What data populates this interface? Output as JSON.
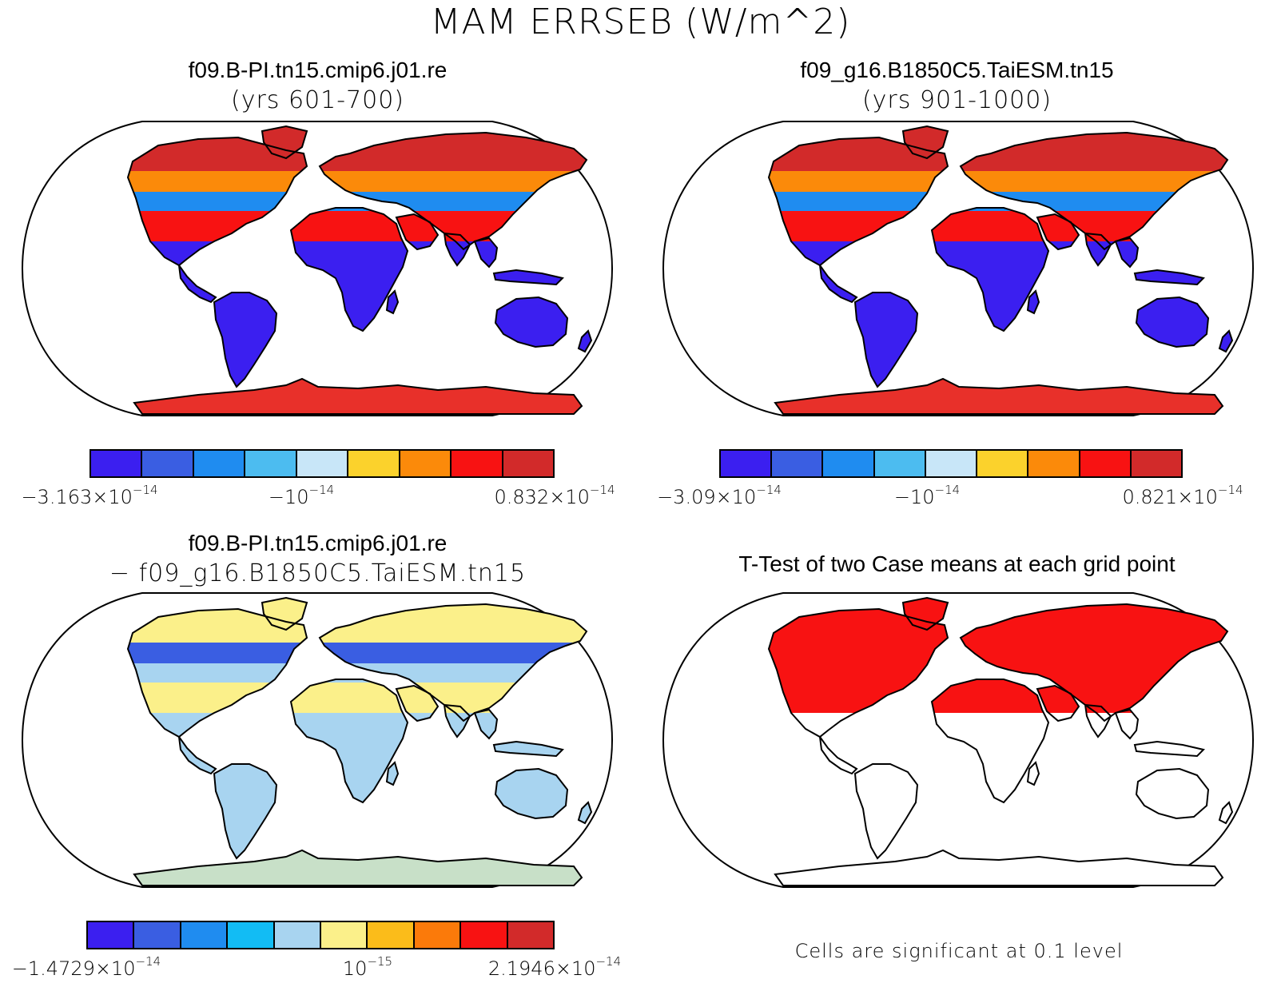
{
  "figure_title": "MAM ERRSEB (W/m^2)",
  "panels": [
    {
      "title": "f09.B-PI.tn15.cmip6.j01.re",
      "subtitle": "(yrs 601-700)",
      "colorbar": {
        "colors": [
          "#3b1ff0",
          "#3a5ee2",
          "#1f8cf0",
          "#4cbcf0",
          "#c8e6f8",
          "#fbd22c",
          "#fb8a0a",
          "#f81212",
          "#d22a2a"
        ],
        "labels": [
          {
            "mantissa": "−3.163×10",
            "exp": "−14"
          },
          {
            "mantissa": "−10",
            "exp": "−14"
          },
          {
            "mantissa": "0.832×10",
            "exp": "−14"
          }
        ]
      }
    },
    {
      "title": "f09_g16.B1850C5.TaiESM.tn15",
      "subtitle": "(yrs 901-1000)",
      "colorbar": {
        "colors": [
          "#3b1ff0",
          "#3a5ee2",
          "#1f8cf0",
          "#4cbcf0",
          "#c8e6f8",
          "#fbd22c",
          "#fb8a0a",
          "#f81212",
          "#d22a2a"
        ],
        "labels": [
          {
            "mantissa": "−3.09×10",
            "exp": "−14"
          },
          {
            "mantissa": "−10",
            "exp": "−14"
          },
          {
            "mantissa": "0.821×10",
            "exp": "−14"
          }
        ]
      }
    },
    {
      "title": "f09.B-PI.tn15.cmip6.j01.re",
      "subtitle": "− f09_g16.B1850C5.TaiESM.tn15",
      "colorbar": {
        "colors": [
          "#3b1ff0",
          "#3a5ee2",
          "#1f8cf0",
          "#12bcf4",
          "#a8d4f0",
          "#fbf08a",
          "#fbbc1a",
          "#fb7a0a",
          "#f81212",
          "#d22a2a"
        ],
        "labels": [
          {
            "mantissa": "−1.4729×10",
            "exp": "−14"
          },
          {
            "mantissa": "10",
            "exp": "−15"
          },
          {
            "mantissa": "2.1946×10",
            "exp": "−14"
          }
        ]
      }
    },
    {
      "title": "T-Test of two Case means at each grid point",
      "note": "Cells are significant at 0.1 level"
    }
  ],
  "map_palettes": {
    "case_1": {
      "north": "#d22a2a",
      "mid_north": "#fb8a0a",
      "temperate": "#1f8cf0",
      "tropics": "#3b1ff0",
      "desert": "#f81212",
      "antarctica": "#e8302a"
    },
    "case_2": {
      "north": "#d22a2a",
      "mid_north": "#fb8a0a",
      "temperate": "#1f8cf0",
      "tropics": "#3b1ff0",
      "desert": "#f81212",
      "antarctica": "#e8302a"
    },
    "difference": {
      "north": "#fbf08a",
      "mid_north": "#3a5ee2",
      "temperate": "#a8d4f0",
      "tropics": "#a8d4f0",
      "desert": "#fbf08a",
      "antarctica": "#c8e0c8"
    },
    "ttest": {
      "north": "#f81212",
      "mid_north": "#f81212",
      "temperate": "#f81212",
      "tropics": "#ffffff",
      "desert": "#f81212",
      "antarctica": "#ffffff"
    }
  }
}
